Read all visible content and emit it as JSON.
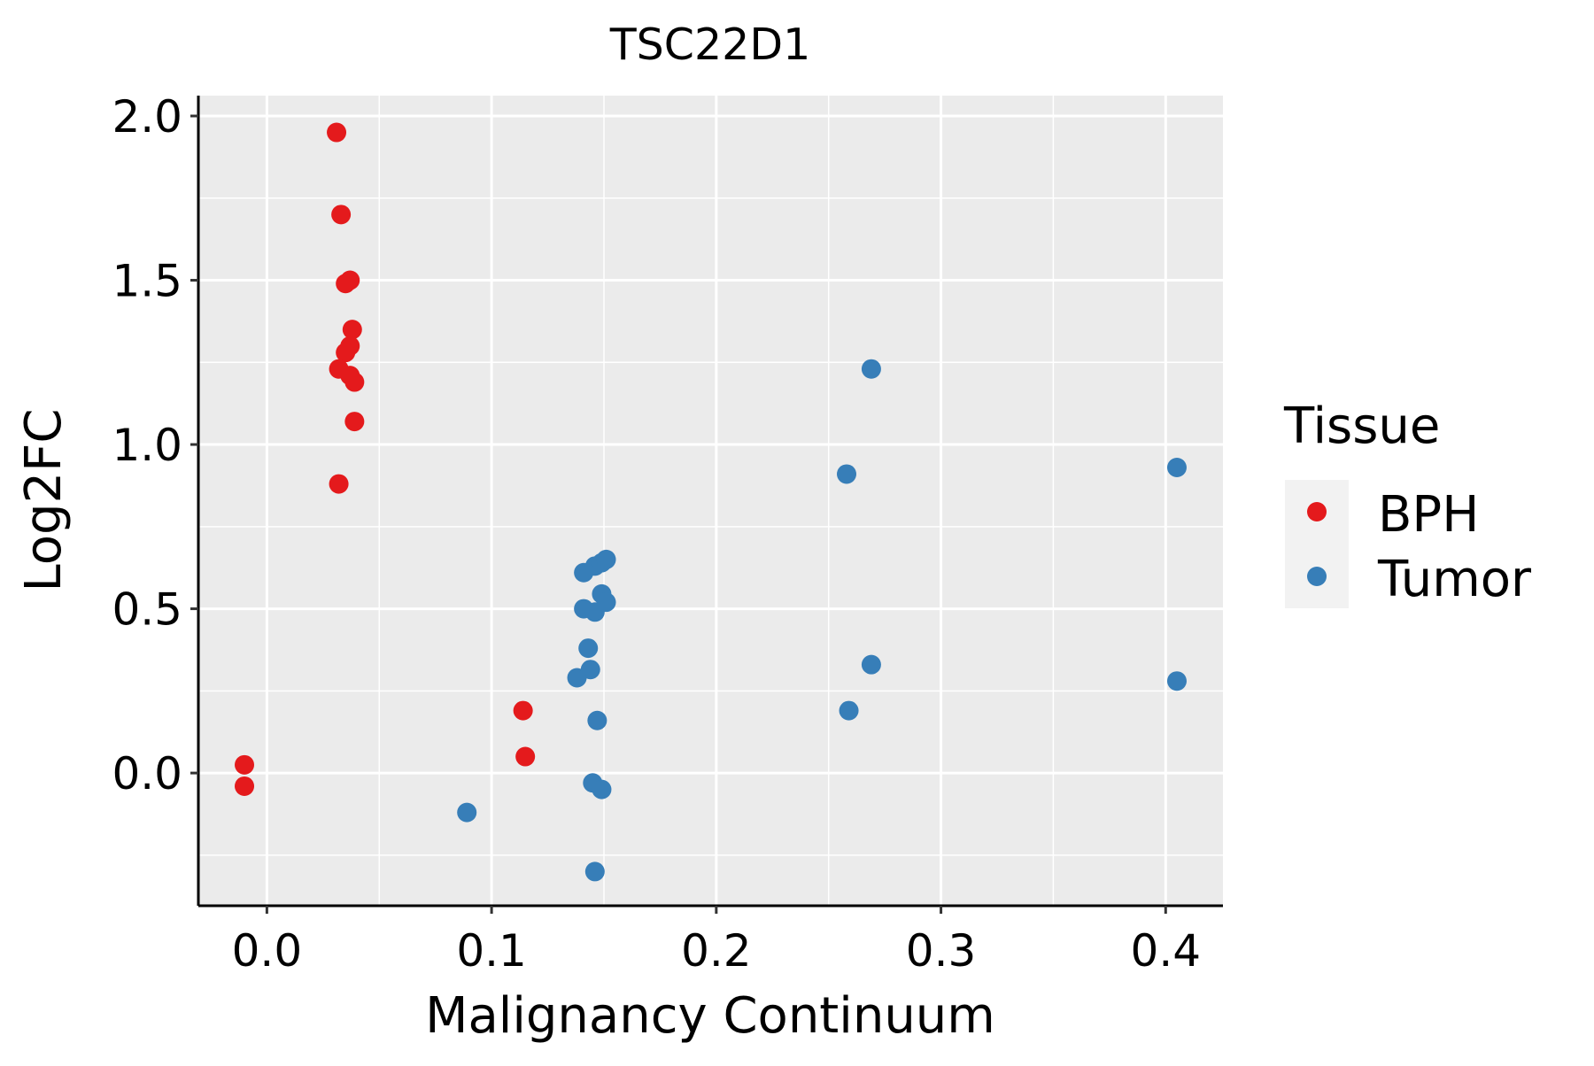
{
  "chart_data": {
    "type": "scatter",
    "title": "TSC22D1",
    "xlabel": "Malignancy Continuum",
    "ylabel": "Log2FC",
    "xlim": [
      -0.0305,
      0.4255
    ],
    "ylim": [
      -0.404,
      2.062
    ],
    "xticks": [
      0.0,
      0.1,
      0.2,
      0.3,
      0.4
    ],
    "xtick_labels": [
      "0.0",
      "0.1",
      "0.2",
      "0.3",
      "0.4"
    ],
    "yticks": [
      0.0,
      0.5,
      1.0,
      1.5,
      2.0
    ],
    "ytick_labels": [
      "0.0",
      "0.5",
      "1.0",
      "1.5",
      "2.0"
    ],
    "grid": true,
    "legend": {
      "title": "Tissue",
      "placement": "right"
    },
    "series": [
      {
        "name": "BPH",
        "color": "#E41A1C",
        "points": [
          [
            0.031,
            1.95
          ],
          [
            0.033,
            1.7
          ],
          [
            0.035,
            1.49
          ],
          [
            0.037,
            1.5
          ],
          [
            0.038,
            1.35
          ],
          [
            0.037,
            1.3
          ],
          [
            0.035,
            1.28
          ],
          [
            0.032,
            1.23
          ],
          [
            0.037,
            1.21
          ],
          [
            0.039,
            1.19
          ],
          [
            0.039,
            1.07
          ],
          [
            0.032,
            0.88
          ],
          [
            0.114,
            0.19
          ],
          [
            0.115,
            0.05
          ],
          [
            -0.01,
            0.025
          ],
          [
            -0.01,
            -0.04
          ]
        ]
      },
      {
        "name": "Tumor",
        "color": "#377EB8",
        "points": [
          [
            0.269,
            1.23
          ],
          [
            0.258,
            0.91
          ],
          [
            0.405,
            0.93
          ],
          [
            0.141,
            0.61
          ],
          [
            0.146,
            0.63
          ],
          [
            0.149,
            0.64
          ],
          [
            0.151,
            0.65
          ],
          [
            0.141,
            0.5
          ],
          [
            0.146,
            0.49
          ],
          [
            0.149,
            0.545
          ],
          [
            0.151,
            0.52
          ],
          [
            0.143,
            0.38
          ],
          [
            0.144,
            0.315
          ],
          [
            0.138,
            0.29
          ],
          [
            0.147,
            0.16
          ],
          [
            0.269,
            0.33
          ],
          [
            0.259,
            0.19
          ],
          [
            0.405,
            0.28
          ],
          [
            0.145,
            -0.03
          ],
          [
            0.149,
            -0.05
          ],
          [
            0.089,
            -0.12
          ],
          [
            0.146,
            -0.3
          ]
        ]
      }
    ]
  }
}
